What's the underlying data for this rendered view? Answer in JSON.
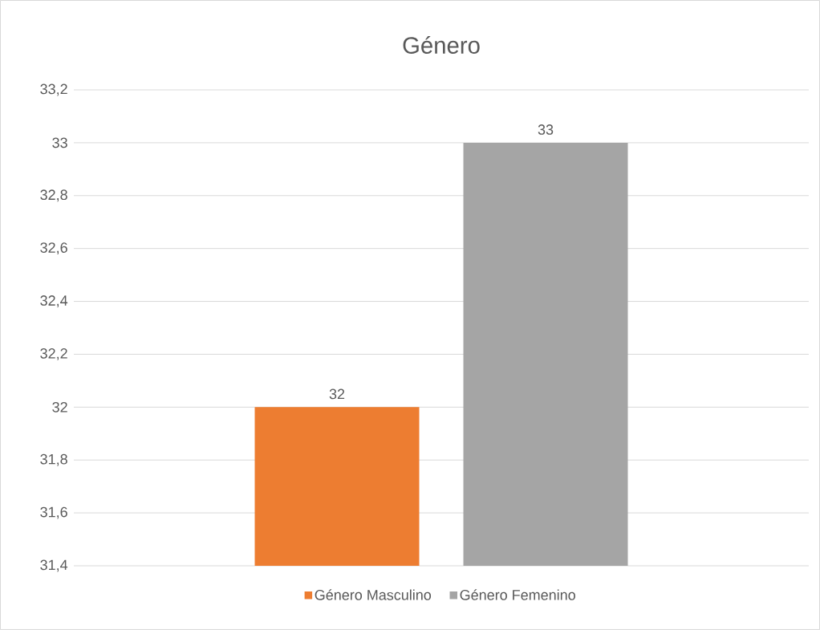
{
  "chart_data": {
    "type": "bar",
    "title": "Género",
    "categories": [
      null
    ],
    "series": [
      {
        "name": "Género Masculino",
        "color": "#ed7d31",
        "values": [
          32
        ]
      },
      {
        "name": "Género Femenino",
        "color": "#a5a5a5",
        "values": [
          33
        ]
      }
    ],
    "ylim": [
      31.4,
      33.2
    ],
    "yticks": [
      {
        "value": 31.4,
        "label": "31,4"
      },
      {
        "value": 31.6,
        "label": "31,6"
      },
      {
        "value": 31.8,
        "label": "31,8"
      },
      32,
      {
        "value": 32.2,
        "label": "32,2"
      },
      {
        "value": 32.4,
        "label": "32,4"
      },
      {
        "value": 32.6,
        "label": "32,6"
      },
      {
        "value": 32.8,
        "label": "32,8"
      },
      33,
      {
        "value": 33.2,
        "label": "33,2"
      }
    ],
    "tick_labels": "y",
    "grid": "y",
    "legend": "bottom",
    "data_labels": true
  }
}
